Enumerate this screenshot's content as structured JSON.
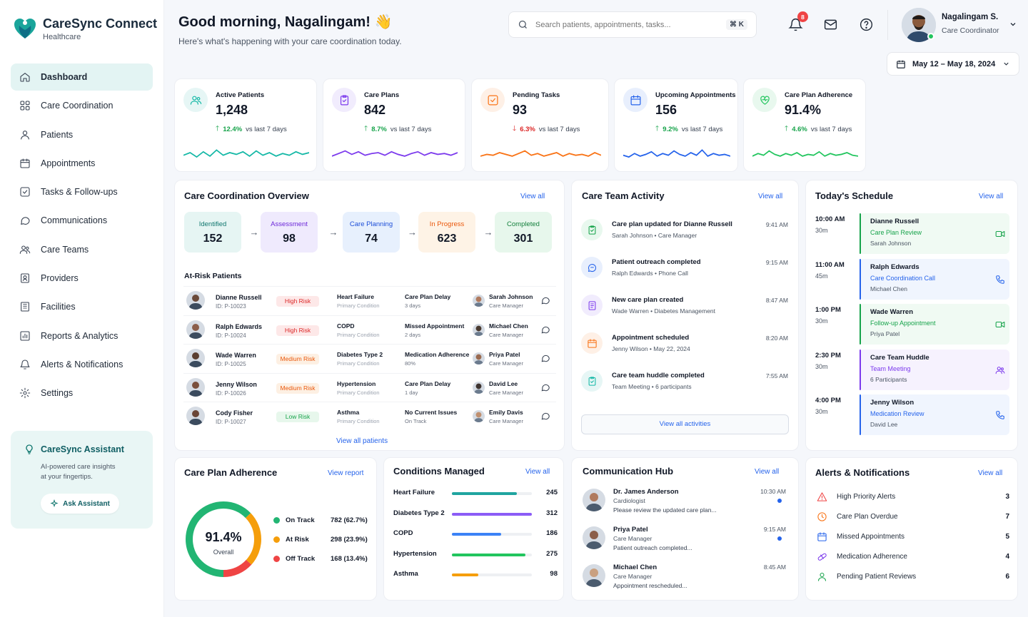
{
  "app": {
    "name": "CareSync Connect",
    "subtitle": "Healthcare"
  },
  "nav": [
    {
      "label": "Dashboard",
      "icon": "home-icon",
      "active": true
    },
    {
      "label": "Care Coordination",
      "icon": "grid-icon"
    },
    {
      "label": "Patients",
      "icon": "user-icon"
    },
    {
      "label": "Appointments",
      "icon": "calendar-icon"
    },
    {
      "label": "Tasks & Follow-ups",
      "icon": "checkbox-icon"
    },
    {
      "label": "Communications",
      "icon": "chat-icon"
    },
    {
      "label": "Care Teams",
      "icon": "team-icon"
    },
    {
      "label": "Providers",
      "icon": "provider-icon"
    },
    {
      "label": "Facilities",
      "icon": "building-icon"
    },
    {
      "label": "Reports & Analytics",
      "icon": "chart-icon"
    },
    {
      "label": "Alerts & Notifications",
      "icon": "bell-icon"
    },
    {
      "label": "Settings",
      "icon": "gear-icon"
    }
  ],
  "assistant": {
    "title": "CareSync Assistant",
    "desc_line1": "AI-powered care insights",
    "desc_line2": "at your fingertips.",
    "button": "Ask Assistant"
  },
  "header": {
    "greeting": "Good morning, Nagalingam! 👋",
    "subtext": "Here's what's happening with your care coordination today.",
    "search_placeholder": "Search patients, appointments, tasks...",
    "shortcut": "⌘ K",
    "notification_count": "8",
    "user_name": "Nagalingam S.",
    "user_role": "Care Coordinator",
    "date_range": "May 12 – May 18, 2024"
  },
  "stats": [
    {
      "label": "Active Patients",
      "value": "1,248",
      "change": "12.4%",
      "direction": "up",
      "period": "vs last 7 days",
      "color": "#14b8a6",
      "bg": "#e6f6f5"
    },
    {
      "label": "Care Plans",
      "value": "842",
      "change": "8.7%",
      "direction": "up",
      "period": "vs last 7 days",
      "color": "#7c3aed",
      "bg": "#f1ecfd"
    },
    {
      "label": "Pending Tasks",
      "value": "93",
      "change": "6.3%",
      "direction": "down",
      "period": "vs last 7 days",
      "color": "#f97316",
      "bg": "#fef0e6"
    },
    {
      "label": "Upcoming Appointments",
      "value": "156",
      "change": "9.2%",
      "direction": "up",
      "period": "vs last 7 days",
      "color": "#2563eb",
      "bg": "#e8effd"
    },
    {
      "label": "Care Plan Adherence",
      "value": "91.4%",
      "change": "4.6%",
      "direction": "up",
      "period": "vs last 7 days",
      "color": "#22c55e",
      "bg": "#e8f8ee"
    }
  ],
  "overview": {
    "title": "Care Coordination Overview",
    "view_all": "View all",
    "stages": [
      {
        "label": "Identified",
        "value": "152",
        "bg": "#e6f5f3",
        "color": "#0f766e"
      },
      {
        "label": "Assessment",
        "value": "98",
        "bg": "#efeafd",
        "color": "#6d28d9"
      },
      {
        "label": "Care Planning",
        "value": "74",
        "bg": "#e7f0fd",
        "color": "#1d4ed8"
      },
      {
        "label": "In Progress",
        "value": "623",
        "bg": "#fef3e6",
        "color": "#ea580c"
      },
      {
        "label": "Completed",
        "value": "301",
        "bg": "#e7f7ec",
        "color": "#15803d"
      }
    ],
    "at_risk_title": "At-Risk Patients",
    "patients": [
      {
        "name": "Dianne Russell",
        "id": "ID: P-10023",
        "risk": "High Risk",
        "condition": "Heart Failure",
        "condition_sub": "Primary Condition",
        "gap": "Care Plan Delay",
        "gap_sub": "3 days",
        "manager": "Sarah Johnson",
        "manager_role": "Care Manager"
      },
      {
        "name": "Ralph Edwards",
        "id": "ID: P-10024",
        "risk": "High Risk",
        "condition": "COPD",
        "condition_sub": "Primary Condition",
        "gap": "Missed Appointment",
        "gap_sub": "2 days",
        "manager": "Michael Chen",
        "manager_role": "Care Manager"
      },
      {
        "name": "Wade Warren",
        "id": "ID: P-10025",
        "risk": "Medium Risk",
        "condition": "Diabetes Type 2",
        "condition_sub": "Primary Condition",
        "gap": "Medication Adherence",
        "gap_sub": "80%",
        "manager": "Priya Patel",
        "manager_role": "Care Manager"
      },
      {
        "name": "Jenny Wilson",
        "id": "ID: P-10026",
        "risk": "Medium Risk",
        "condition": "Hypertension",
        "condition_sub": "Primary Condition",
        "gap": "Care Plan Delay",
        "gap_sub": "1 day",
        "manager": "David Lee",
        "manager_role": "Care Manager"
      },
      {
        "name": "Cody Fisher",
        "id": "ID: P-10027",
        "risk": "Low Risk",
        "condition": "Asthma",
        "condition_sub": "Primary Condition",
        "gap": "No Current Issues",
        "gap_sub": "On Track",
        "manager": "Emily Davis",
        "manager_role": "Care Manager"
      }
    ],
    "view_all_patients": "View all patients"
  },
  "activity": {
    "title": "Care Team Activity",
    "view_all": "View all",
    "items": [
      {
        "title": "Care plan updated for Dianne Russell",
        "sub": "Sarah Johnson  •  Care Manager",
        "time": "9:41 AM",
        "color": "#16a34a",
        "bg": "#e8f8ee"
      },
      {
        "title": "Patient outreach completed",
        "sub": "Ralph Edwards  •  Phone Call",
        "time": "9:15 AM",
        "color": "#2563eb",
        "bg": "#e8effd"
      },
      {
        "title": "New care plan created",
        "sub": "Wade Warren  •  Diabetes Management",
        "time": "8:47 AM",
        "color": "#7c3aed",
        "bg": "#f1ecfd"
      },
      {
        "title": "Appointment scheduled",
        "sub": "Jenny Wilson  •  May 22, 2024",
        "time": "8:20 AM",
        "color": "#f97316",
        "bg": "#fef0e6"
      },
      {
        "title": "Care team huddle completed",
        "sub": "Team Meeting  •  6 participants",
        "time": "7:55 AM",
        "color": "#14b8a6",
        "bg": "#e6f6f5"
      }
    ],
    "view_all_button": "View all activities"
  },
  "schedule": {
    "title": "Today's Schedule",
    "view_all": "View all",
    "items": [
      {
        "time": "10:00 AM",
        "dur": "30m",
        "name": "Dianne Russell",
        "type": "Care Plan Review",
        "person": "Sarah Johnson",
        "color": "#16a34a",
        "bg": "#f0faf3",
        "icon": "video-icon"
      },
      {
        "time": "11:00 AM",
        "dur": "45m",
        "name": "Ralph Edwards",
        "type": "Care Coordination Call",
        "person": "Michael Chen",
        "color": "#2563eb",
        "bg": "#f0f5fe",
        "icon": "phone-icon"
      },
      {
        "time": "1:00 PM",
        "dur": "30m",
        "name": "Wade Warren",
        "type": "Follow-up Appointment",
        "person": "Priya Patel",
        "color": "#16a34a",
        "bg": "#f0faf3",
        "icon": "video-icon"
      },
      {
        "time": "2:30 PM",
        "dur": "30m",
        "name": "Care Team Huddle",
        "type": "Team Meeting",
        "person": "6 Participants",
        "color": "#7c3aed",
        "bg": "#f6f2fe",
        "icon": "team-icon"
      },
      {
        "time": "4:00 PM",
        "dur": "30m",
        "name": "Jenny Wilson",
        "type": "Medication Review",
        "person": "David Lee",
        "color": "#2563eb",
        "bg": "#f0f5fe",
        "icon": "phone-icon"
      }
    ]
  },
  "adherence": {
    "title": "Care Plan Adherence",
    "view_report": "View report",
    "value": "91.4%",
    "caption": "Overall",
    "segments": [
      {
        "label": "On Track",
        "value": "782 (62.7%)",
        "pct": 62.7,
        "color": "#22b573"
      },
      {
        "label": "At Risk",
        "value": "298 (23.9%)",
        "pct": 23.9,
        "color": "#f59e0b"
      },
      {
        "label": "Off Track",
        "value": "168 (13.4%)",
        "pct": 13.4,
        "color": "#ef4444"
      }
    ]
  },
  "conditions": {
    "title": "Conditions Managed",
    "view_all": "View all",
    "max": 300,
    "items": [
      {
        "name": "Heart Failure",
        "value": 245,
        "color": "#1fa5a0"
      },
      {
        "name": "Diabetes Type 2",
        "value": 312,
        "color": "#8b5cf6"
      },
      {
        "name": "COPD",
        "value": 186,
        "color": "#3b82f6"
      },
      {
        "name": "Hypertension",
        "value": 275,
        "color": "#22c55e"
      },
      {
        "name": "Asthma",
        "value": 98,
        "color": "#f59e0b"
      }
    ]
  },
  "comm": {
    "title": "Communication Hub",
    "view_all": "View all",
    "items": [
      {
        "name": "Dr. James Anderson",
        "role": "Cardiologist",
        "text": "Please review the updated care plan...",
        "time": "10:30 AM",
        "unread": true
      },
      {
        "name": "Priya Patel",
        "role": "Care Manager",
        "text": "Patient outreach completed...",
        "time": "9:15 AM",
        "unread": true
      },
      {
        "name": "Michael Chen",
        "role": "Care Manager",
        "text": "Appointment rescheduled...",
        "time": "8:45 AM",
        "unread": false
      }
    ]
  },
  "alerts": {
    "title": "Alerts & Notifications",
    "view_all": "View all",
    "items": [
      {
        "label": "High Priority Alerts",
        "count": "3",
        "color": "#ef4444",
        "icon": "warning-icon"
      },
      {
        "label": "Care Plan Overdue",
        "count": "7",
        "color": "#f97316",
        "icon": "clock-icon"
      },
      {
        "label": "Missed Appointments",
        "count": "5",
        "color": "#2563eb",
        "icon": "calendar-icon"
      },
      {
        "label": "Medication Adherence",
        "count": "4",
        "color": "#7c3aed",
        "icon": "pill-icon"
      },
      {
        "label": "Pending Patient Reviews",
        "count": "6",
        "color": "#16a34a",
        "icon": "user-icon"
      }
    ]
  }
}
